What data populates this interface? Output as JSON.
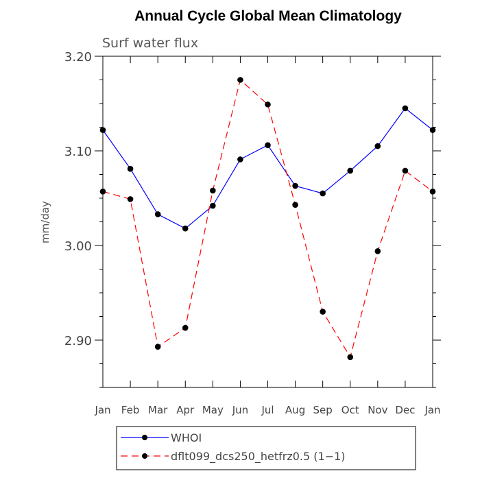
{
  "chart_data": {
    "type": "line",
    "title": "Annual Cycle Global Mean Climatology",
    "subtitle": "Surf water flux",
    "ylabel": "mm/day",
    "xlabel": "",
    "categories": [
      "Jan",
      "Feb",
      "Mar",
      "Apr",
      "May",
      "Jun",
      "Jul",
      "Aug",
      "Sep",
      "Oct",
      "Nov",
      "Dec",
      "Jan"
    ],
    "ylim": [
      2.85,
      3.2
    ],
    "yticks": [
      2.9,
      3.0,
      3.1,
      3.2
    ],
    "ytick_labels": [
      "2.90",
      "3.00",
      "3.10",
      "3.20"
    ],
    "grid": false,
    "legend_position": "bottom",
    "series": [
      {
        "name": "WHOI",
        "color": "#0000ff",
        "dash": "solid",
        "values": [
          3.122,
          3.081,
          3.033,
          3.018,
          3.042,
          3.091,
          3.106,
          3.063,
          3.055,
          3.079,
          3.105,
          3.145,
          3.122
        ]
      },
      {
        "name": "dflt099_dcs250_hetfrz0.5 (1−1)",
        "color": "#ff0000",
        "dash": "dashed",
        "values": [
          3.057,
          3.049,
          2.893,
          2.913,
          3.058,
          3.175,
          3.149,
          3.043,
          2.93,
          2.882,
          2.994,
          3.079,
          3.057
        ]
      }
    ]
  }
}
